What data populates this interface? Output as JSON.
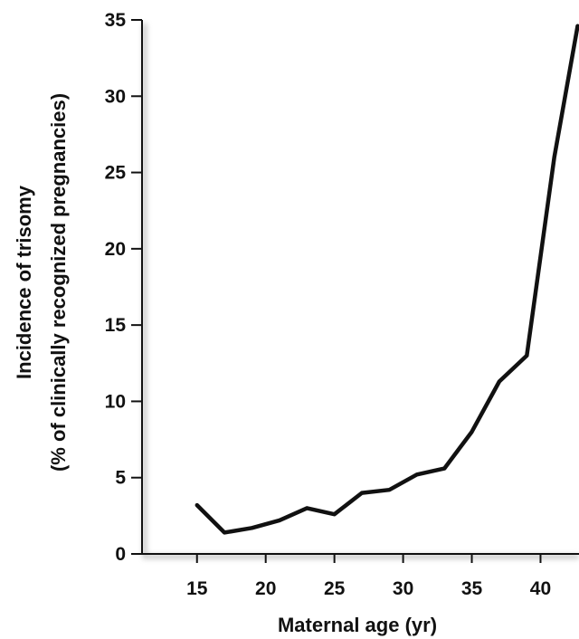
{
  "chart_data": {
    "type": "line",
    "title": "",
    "xlabel": "Maternal age (yr)",
    "ylabel_line1": "Incidence of trisomy",
    "ylabel_line2": "(% of clinically recognized pregnancies)",
    "xlim": [
      11,
      42.8
    ],
    "ylim": [
      0,
      35
    ],
    "xticks": [
      15,
      20,
      25,
      30,
      35,
      40
    ],
    "yticks": [
      0,
      5,
      10,
      15,
      20,
      25,
      30,
      35
    ],
    "grid": false,
    "legend": "none",
    "line_color": "#111111",
    "series": [
      {
        "x": [
          15,
          17,
          19,
          21,
          23,
          25,
          27,
          29,
          31,
          33,
          35,
          37,
          39,
          41,
          42.7
        ],
        "y": [
          3.2,
          1.4,
          1.7,
          2.2,
          3.0,
          2.6,
          4.0,
          4.2,
          5.2,
          5.6,
          8.0,
          11.3,
          13.0,
          26.0,
          34.6
        ]
      }
    ]
  }
}
